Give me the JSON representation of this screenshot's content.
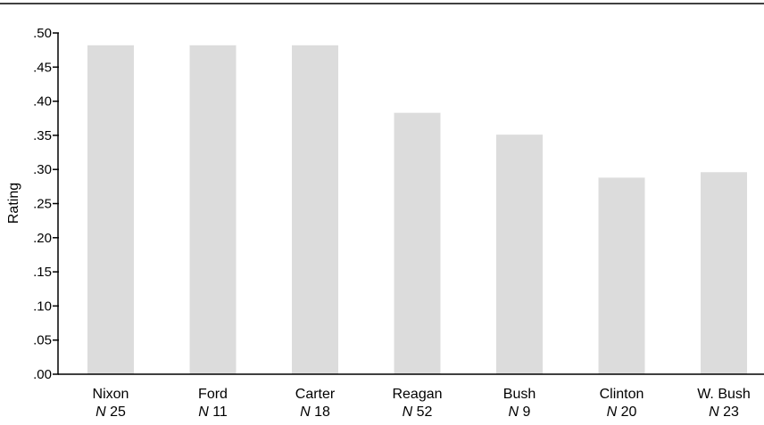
{
  "chart_data": {
    "type": "bar",
    "ylabel": "Rating",
    "ylim": [
      0,
      0.5
    ],
    "yticks": [
      {
        "value": 0.0,
        "label": ".00"
      },
      {
        "value": 0.05,
        "label": ".05"
      },
      {
        "value": 0.1,
        "label": ".10"
      },
      {
        "value": 0.15,
        "label": ".15"
      },
      {
        "value": 0.2,
        "label": ".20"
      },
      {
        "value": 0.25,
        "label": ".25"
      },
      {
        "value": 0.3,
        "label": ".30"
      },
      {
        "value": 0.35,
        "label": ".35"
      },
      {
        "value": 0.4,
        "label": ".40"
      },
      {
        "value": 0.45,
        "label": ".45"
      },
      {
        "value": 0.5,
        "label": ".50"
      }
    ],
    "categories": [
      "Nixon",
      "Ford",
      "Carter",
      "Reagan",
      "Bush",
      "Clinton",
      "W. Bush"
    ],
    "n_prefix": "N",
    "n_values": [
      "25",
      "11",
      "18",
      "52",
      "9",
      "20",
      "23"
    ],
    "values": [
      0.482,
      0.482,
      0.482,
      0.383,
      0.351,
      0.288,
      0.296
    ],
    "bar_color": "#dcdcdc",
    "grid": false
  }
}
